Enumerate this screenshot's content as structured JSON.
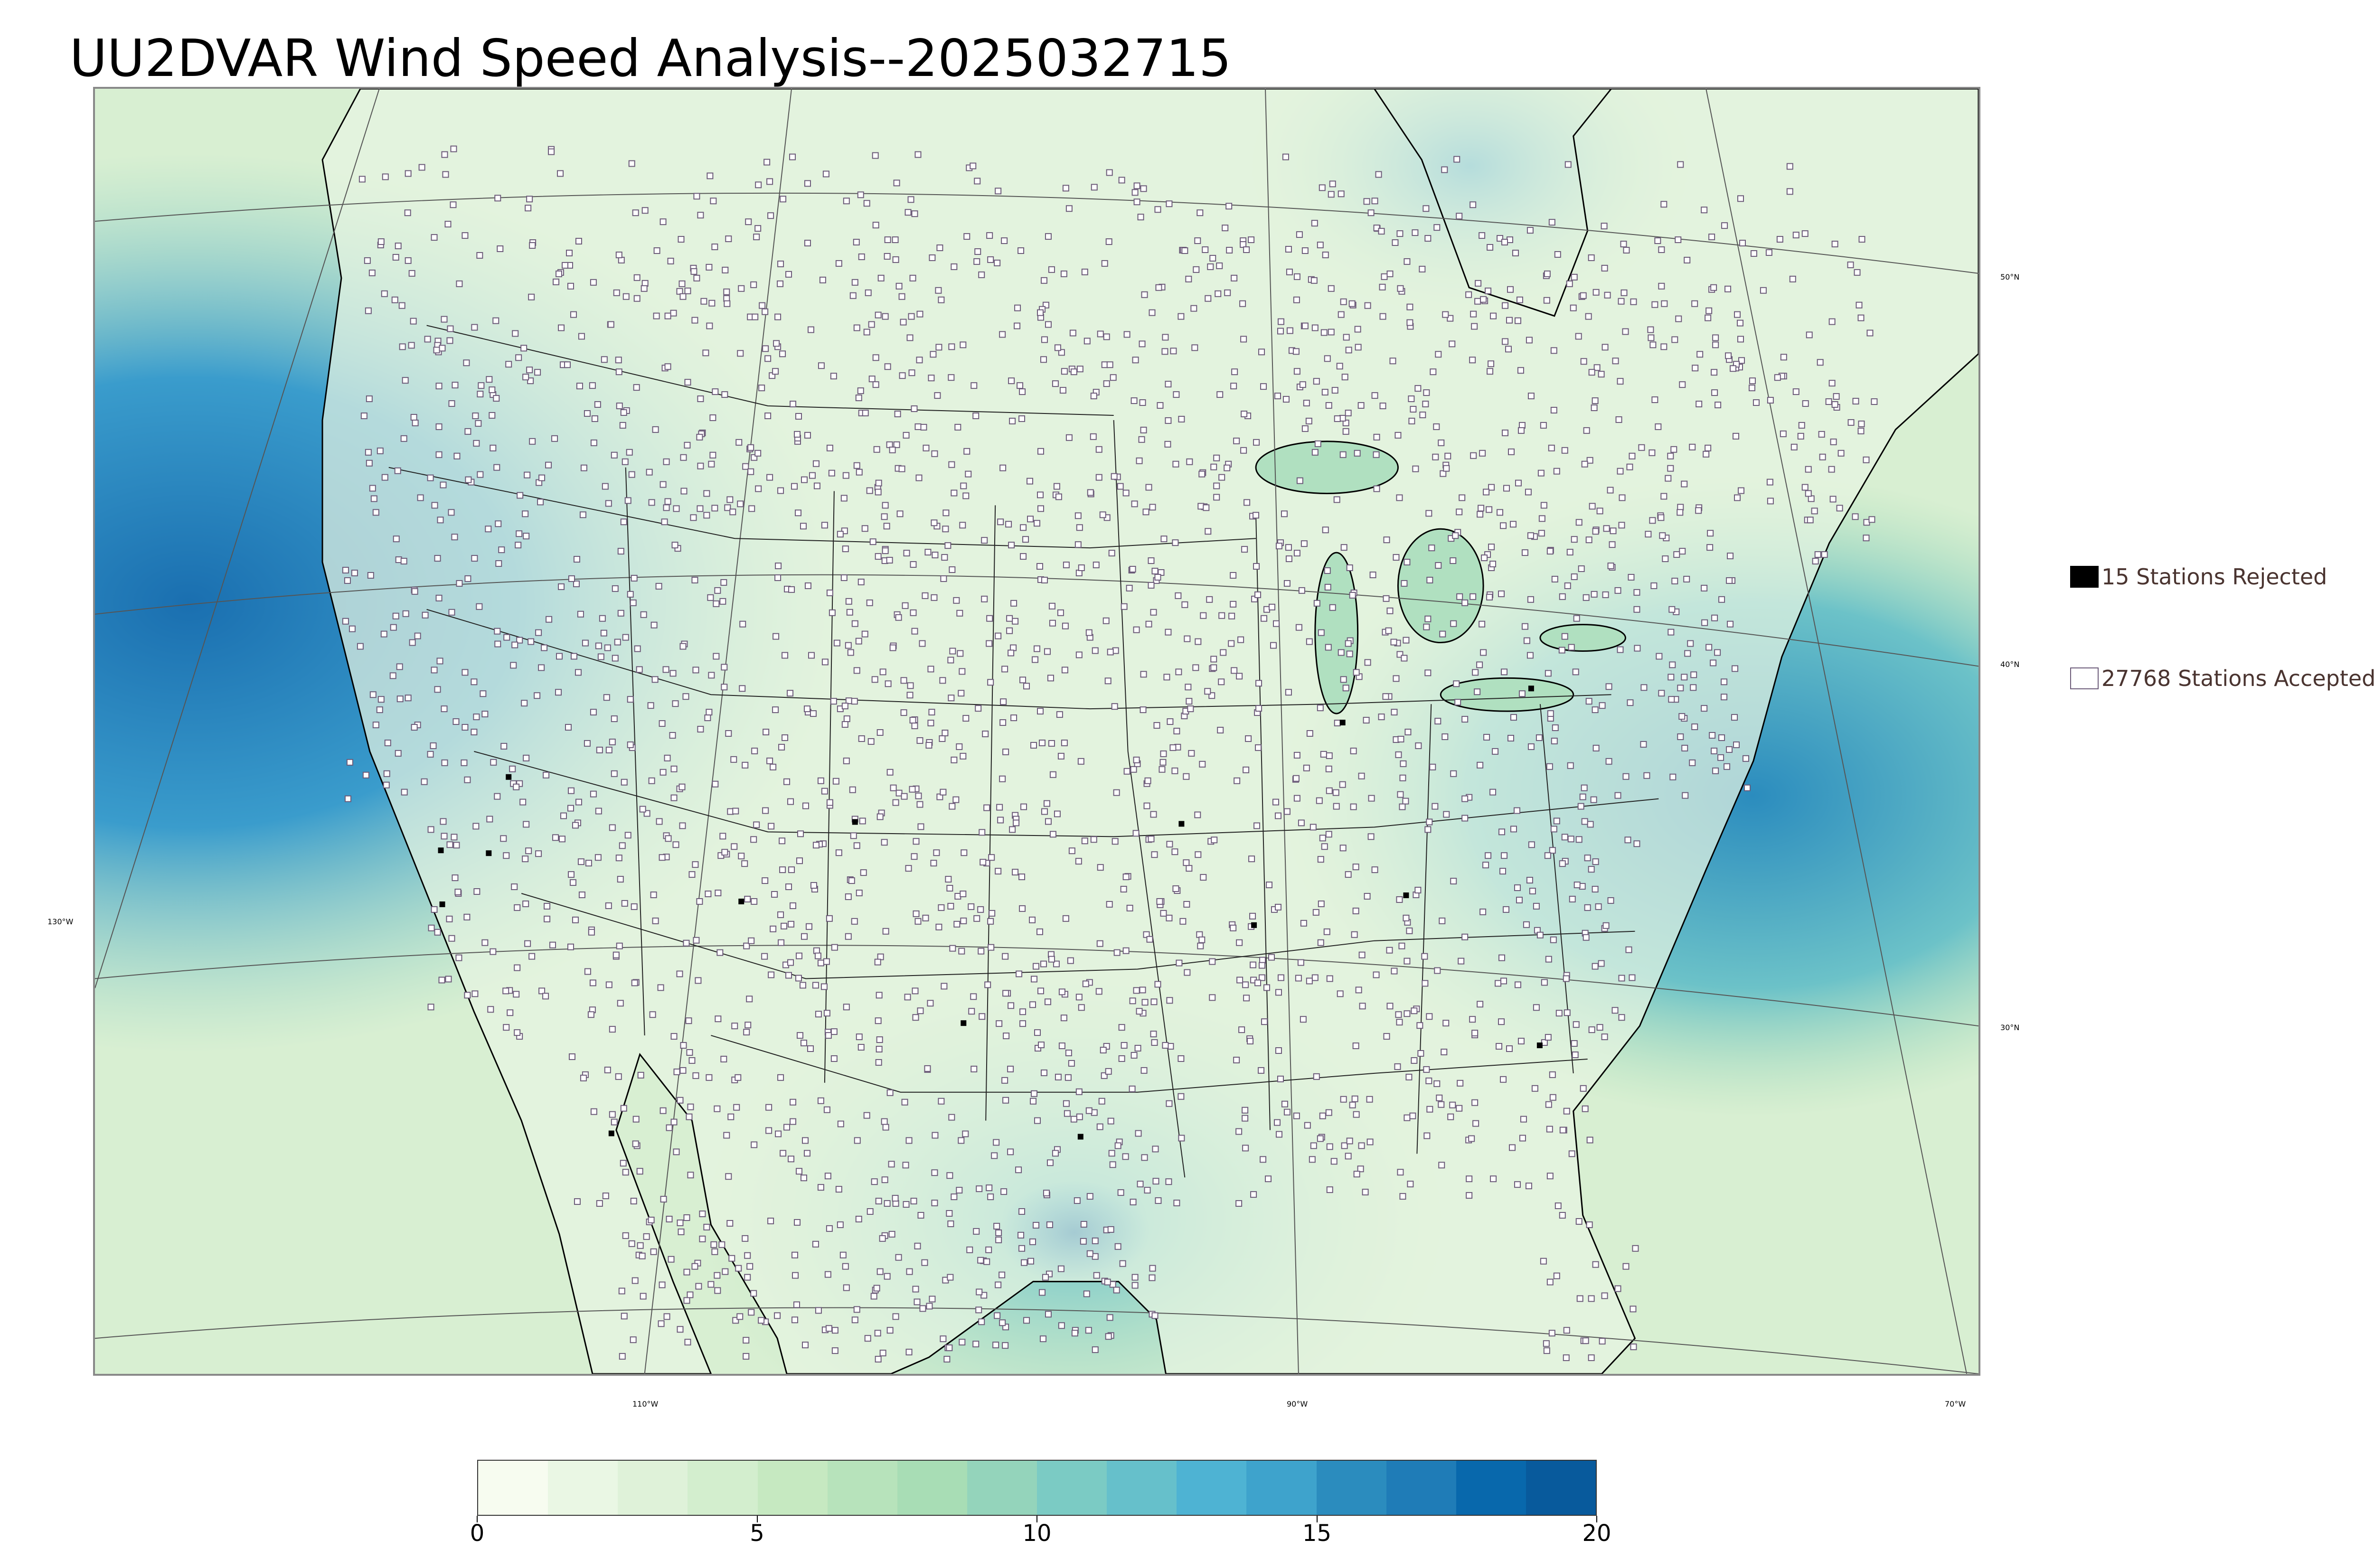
{
  "title": "UU2DVAR Wind Speed Analysis--2025032715",
  "map": {
    "longitude_labels": [
      "130°W",
      "110°W",
      "90°W",
      "70°W"
    ],
    "latitude_labels": [
      "50°N",
      "40°N",
      "30°N"
    ]
  },
  "legend": {
    "rejected": {
      "label": "15 Stations Rejected",
      "color": "#000000"
    },
    "accepted": {
      "label": "27768 Stations Accepted",
      "color": "#ffffff"
    }
  },
  "colorbar": {
    "min": 0,
    "max": 20,
    "ticks": [
      "0",
      "5",
      "10",
      "15",
      "20"
    ],
    "colors": [
      "#f7fcf0",
      "#eaf7e4",
      "#dff2d9",
      "#d3eece",
      "#c6e9c1",
      "#b7e3bb",
      "#a8ddb5",
      "#94d4bb",
      "#7bcbc4",
      "#66c0cb",
      "#4eb3d3",
      "#3ea3cc",
      "#2b8cbe",
      "#1f7cb7",
      "#0868ac",
      "#085a9c"
    ]
  },
  "colors": {
    "ocean_deep": "#1a6fb0",
    "land_base": "#e6f4e1",
    "station_outline": "#6b5a78"
  }
}
